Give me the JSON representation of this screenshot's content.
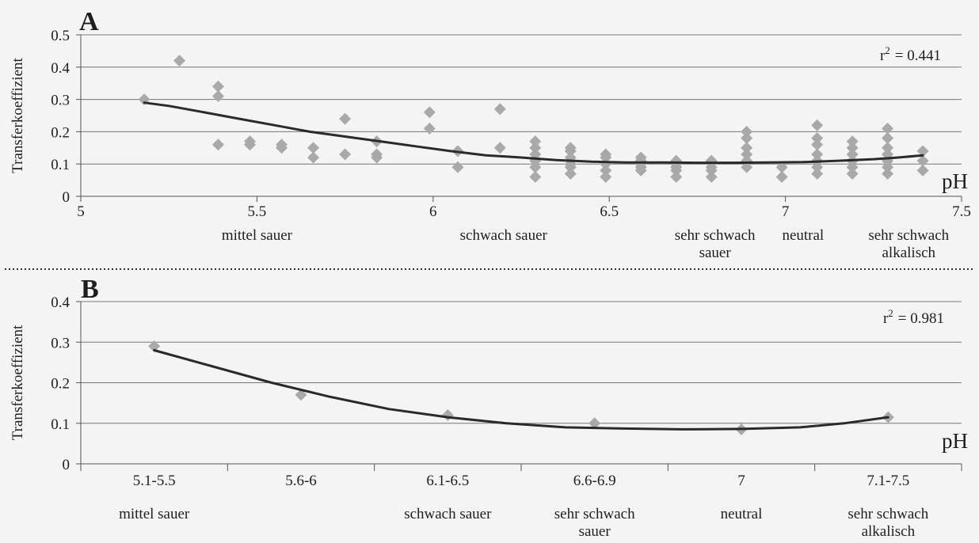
{
  "chart_data": [
    {
      "type": "scatter",
      "panel_label": "A",
      "ylabel": "Transferkoeffizient",
      "xlabel": "pH",
      "annotation": "r² = 0.441",
      "annotation_base": "r",
      "annotation_sup": "2",
      "annotation_value": "= 0.441",
      "xlim": [
        5,
        7.5
      ],
      "ylim": [
        0,
        0.5
      ],
      "x_ticks": [
        "5",
        "5.5",
        "6",
        "6.5",
        "7",
        "7.5"
      ],
      "y_ticks": [
        "0",
        "0.1",
        "0.2",
        "0.3",
        "0.4",
        "0.5"
      ],
      "grid": true,
      "categories": [
        {
          "label": [
            "mittel sauer"
          ],
          "x": 5.5
        },
        {
          "label": [
            "schwach sauer"
          ],
          "x": 6.2
        },
        {
          "label": [
            "sehr schwach",
            "sauer"
          ],
          "x": 6.8
        },
        {
          "label": [
            "neutral"
          ],
          "x": 7.05
        },
        {
          "label": [
            "sehr schwach",
            "alkalisch"
          ],
          "x": 7.35
        }
      ],
      "points": [
        [
          5.18,
          0.3
        ],
        [
          5.28,
          0.42
        ],
        [
          5.39,
          0.34
        ],
        [
          5.39,
          0.31
        ],
        [
          5.39,
          0.16
        ],
        [
          5.48,
          0.16
        ],
        [
          5.48,
          0.17
        ],
        [
          5.57,
          0.15
        ],
        [
          5.57,
          0.16
        ],
        [
          5.66,
          0.12
        ],
        [
          5.66,
          0.15
        ],
        [
          5.75,
          0.24
        ],
        [
          5.75,
          0.13
        ],
        [
          5.84,
          0.12
        ],
        [
          5.84,
          0.13
        ],
        [
          5.84,
          0.17
        ],
        [
          5.99,
          0.21
        ],
        [
          5.99,
          0.26
        ],
        [
          6.07,
          0.09
        ],
        [
          6.07,
          0.14
        ],
        [
          6.19,
          0.15
        ],
        [
          6.19,
          0.27
        ],
        [
          6.29,
          0.06
        ],
        [
          6.29,
          0.09
        ],
        [
          6.29,
          0.11
        ],
        [
          6.29,
          0.13
        ],
        [
          6.29,
          0.15
        ],
        [
          6.29,
          0.17
        ],
        [
          6.39,
          0.07
        ],
        [
          6.39,
          0.09
        ],
        [
          6.39,
          0.1
        ],
        [
          6.39,
          0.12
        ],
        [
          6.39,
          0.14
        ],
        [
          6.39,
          0.15
        ],
        [
          6.49,
          0.06
        ],
        [
          6.49,
          0.08
        ],
        [
          6.49,
          0.1
        ],
        [
          6.49,
          0.12
        ],
        [
          6.49,
          0.13
        ],
        [
          6.59,
          0.08
        ],
        [
          6.59,
          0.09
        ],
        [
          6.59,
          0.1
        ],
        [
          6.59,
          0.11
        ],
        [
          6.59,
          0.12
        ],
        [
          6.69,
          0.06
        ],
        [
          6.69,
          0.08
        ],
        [
          6.69,
          0.09
        ],
        [
          6.69,
          0.1
        ],
        [
          6.69,
          0.11
        ],
        [
          6.79,
          0.06
        ],
        [
          6.79,
          0.08
        ],
        [
          6.79,
          0.09
        ],
        [
          6.79,
          0.11
        ],
        [
          6.89,
          0.09
        ],
        [
          6.89,
          0.11
        ],
        [
          6.89,
          0.13
        ],
        [
          6.89,
          0.15
        ],
        [
          6.89,
          0.18
        ],
        [
          6.89,
          0.2
        ],
        [
          6.99,
          0.06
        ],
        [
          6.99,
          0.09
        ],
        [
          7.09,
          0.07
        ],
        [
          7.09,
          0.09
        ],
        [
          7.09,
          0.11
        ],
        [
          7.09,
          0.13
        ],
        [
          7.09,
          0.16
        ],
        [
          7.09,
          0.18
        ],
        [
          7.09,
          0.22
        ],
        [
          7.19,
          0.07
        ],
        [
          7.19,
          0.09
        ],
        [
          7.19,
          0.11
        ],
        [
          7.19,
          0.13
        ],
        [
          7.19,
          0.15
        ],
        [
          7.19,
          0.17
        ],
        [
          7.29,
          0.07
        ],
        [
          7.29,
          0.09
        ],
        [
          7.29,
          0.11
        ],
        [
          7.29,
          0.13
        ],
        [
          7.29,
          0.15
        ],
        [
          7.29,
          0.18
        ],
        [
          7.29,
          0.21
        ],
        [
          7.39,
          0.08
        ],
        [
          7.39,
          0.11
        ],
        [
          7.39,
          0.14
        ]
      ],
      "fit_line": [
        [
          5.18,
          0.29
        ],
        [
          5.25,
          0.28
        ],
        [
          5.35,
          0.26
        ],
        [
          5.45,
          0.24
        ],
        [
          5.55,
          0.22
        ],
        [
          5.65,
          0.2
        ],
        [
          5.75,
          0.185
        ],
        [
          5.85,
          0.17
        ],
        [
          5.95,
          0.155
        ],
        [
          6.05,
          0.14
        ],
        [
          6.15,
          0.127
        ],
        [
          6.25,
          0.12
        ],
        [
          6.35,
          0.112
        ],
        [
          6.45,
          0.107
        ],
        [
          6.55,
          0.105
        ],
        [
          6.65,
          0.105
        ],
        [
          6.75,
          0.104
        ],
        [
          6.85,
          0.104
        ],
        [
          6.95,
          0.105
        ],
        [
          7.05,
          0.106
        ],
        [
          7.15,
          0.11
        ],
        [
          7.25,
          0.115
        ],
        [
          7.32,
          0.12
        ],
        [
          7.39,
          0.127
        ]
      ]
    },
    {
      "type": "line",
      "panel_label": "B",
      "ylabel": "Transferkoeffizient",
      "xlabel": "pH",
      "annotation": "r² = 0.981",
      "annotation_base": "r",
      "annotation_sup": "2",
      "annotation_value": "= 0.981",
      "ylim": [
        0,
        0.4
      ],
      "y_ticks": [
        "0",
        "0.1",
        "0.2",
        "0.3",
        "0.4"
      ],
      "grid": true,
      "x_ticks": [
        "5.1-5.5",
        "5.6-6",
        "6.1-6.5",
        "6.6-6.9",
        "7",
        "7.1-7.5"
      ],
      "categories": [
        {
          "label": [
            "mittel sauer"
          ],
          "x": 0.5
        },
        {
          "label": [
            "schwach sauer"
          ],
          "x": 2.5
        },
        {
          "label": [
            "sehr schwach",
            "sauer"
          ],
          "x": 3.5
        },
        {
          "label": [
            "neutral"
          ],
          "x": 4.5
        },
        {
          "label": [
            "sehr schwach",
            "alkalisch"
          ],
          "x": 5.5
        }
      ],
      "points": [
        [
          0.5,
          0.29
        ],
        [
          1.5,
          0.17
        ],
        [
          2.5,
          0.12
        ],
        [
          3.5,
          0.1
        ],
        [
          4.5,
          0.085
        ],
        [
          5.5,
          0.115
        ]
      ],
      "fit_line": [
        [
          0.5,
          0.28
        ],
        [
          0.9,
          0.24
        ],
        [
          1.3,
          0.2
        ],
        [
          1.7,
          0.165
        ],
        [
          2.1,
          0.135
        ],
        [
          2.5,
          0.115
        ],
        [
          2.9,
          0.1
        ],
        [
          3.3,
          0.09
        ],
        [
          3.7,
          0.087
        ],
        [
          4.1,
          0.085
        ],
        [
          4.5,
          0.086
        ],
        [
          4.9,
          0.09
        ],
        [
          5.2,
          0.1
        ],
        [
          5.5,
          0.115
        ]
      ]
    }
  ]
}
